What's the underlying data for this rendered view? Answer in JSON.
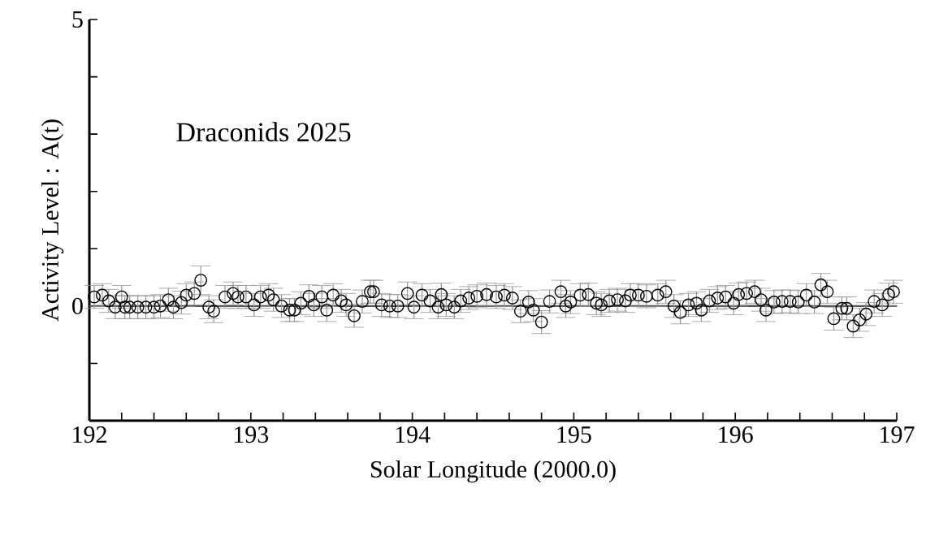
{
  "chart_data": {
    "type": "scatter",
    "xlabel": "Solar Longitude (2000.0)",
    "ylabel": "Activity Level : A(t)",
    "annotations": [
      "Draconids 2025"
    ],
    "xlim": [
      192,
      197
    ],
    "xticks": [
      192,
      {
        "value": 192.2,
        "label": null
      },
      {
        "value": 192.4,
        "label": null
      },
      {
        "value": 192.6,
        "label": null
      },
      {
        "value": 192.8,
        "label": null
      },
      193,
      {
        "value": 193.2,
        "label": null
      },
      {
        "value": 193.4,
        "label": null
      },
      {
        "value": 193.6,
        "label": null
      },
      {
        "value": 193.8,
        "label": null
      },
      194,
      {
        "value": 194.2,
        "label": null
      },
      {
        "value": 194.4,
        "label": null
      },
      {
        "value": 194.6,
        "label": null
      },
      {
        "value": 194.8,
        "label": null
      },
      195,
      {
        "value": 195.2,
        "label": null
      },
      {
        "value": 195.4,
        "label": null
      },
      {
        "value": 195.6,
        "label": null
      },
      {
        "value": 195.8,
        "label": null
      },
      196,
      {
        "value": 196.2,
        "label": null
      },
      {
        "value": 196.4,
        "label": null
      },
      {
        "value": 196.6,
        "label": null
      },
      {
        "value": 196.8,
        "label": null
      },
      197
    ],
    "ylim": [
      -2,
      5
    ],
    "yticks": [
      {
        "value": -1,
        "label": null
      },
      0,
      {
        "value": 1,
        "label": null
      },
      {
        "value": 2,
        "label": null
      },
      {
        "value": 3,
        "label": null
      },
      {
        "value": 4,
        "label": null
      },
      5
    ],
    "marker": "circle",
    "ref_lines": [
      {
        "axis": "y",
        "value": 0,
        "color": "#555555"
      }
    ],
    "series": [
      {
        "color": "#000000",
        "x": [
          192.03,
          192.08,
          192.12,
          192.16,
          192.2,
          192.22,
          192.25,
          192.3,
          192.35,
          192.4,
          192.44,
          192.49,
          192.52,
          192.57,
          192.6,
          192.65,
          192.69,
          192.74,
          192.77,
          192.84,
          192.89,
          192.92,
          192.97,
          193.02,
          193.06,
          193.11,
          193.14,
          193.19,
          193.24,
          193.27,
          193.31,
          193.36,
          193.39,
          193.44,
          193.47,
          193.51,
          193.56,
          193.59,
          193.64,
          193.69,
          193.74,
          193.76,
          193.81,
          193.86,
          193.91,
          193.97,
          194.01,
          194.06,
          194.11,
          194.16,
          194.18,
          194.21,
          194.26,
          194.3,
          194.35,
          194.4,
          194.46,
          194.52,
          194.57,
          194.62,
          194.67,
          194.72,
          194.75,
          194.8,
          194.85,
          194.92,
          194.95,
          194.98,
          195.04,
          195.09,
          195.14,
          195.17,
          195.22,
          195.27,
          195.32,
          195.35,
          195.4,
          195.45,
          195.52,
          195.57,
          195.62,
          195.66,
          195.71,
          195.76,
          195.79,
          195.84,
          195.89,
          195.94,
          195.99,
          196.02,
          196.07,
          196.12,
          196.16,
          196.19,
          196.24,
          196.29,
          196.34,
          196.39,
          196.44,
          196.49,
          196.53,
          196.57,
          196.61,
          196.66,
          196.69,
          196.73,
          196.77,
          196.81,
          196.86,
          196.91,
          196.95,
          196.98
        ],
        "values": [
          0.16,
          0.19,
          0.09,
          -0.02,
          0.16,
          -0.02,
          -0.02,
          -0.02,
          -0.02,
          -0.02,
          0,
          0.11,
          -0.02,
          0.06,
          0.19,
          0.22,
          0.45,
          -0.02,
          -0.09,
          0.16,
          0.22,
          0.16,
          0.16,
          0.02,
          0.16,
          0.19,
          0.11,
          0,
          -0.07,
          -0.07,
          0.05,
          0.17,
          0.02,
          0.16,
          -0.07,
          0.19,
          0.09,
          0.02,
          -0.17,
          0.08,
          0.25,
          0.25,
          0.02,
          0,
          0,
          0.22,
          -0.02,
          0.19,
          0.09,
          -0.02,
          0.2,
          0.02,
          -0.02,
          0.09,
          0.14,
          0.17,
          0.2,
          0.16,
          0.19,
          0.14,
          -0.09,
          0.07,
          -0.07,
          -0.28,
          0.08,
          0.25,
          0,
          0.07,
          0.19,
          0.2,
          0.05,
          0.02,
          0.09,
          0.11,
          0.09,
          0.19,
          0.19,
          0.17,
          0.19,
          0.25,
          0,
          -0.11,
          0.02,
          0.05,
          -0.07,
          0.09,
          0.14,
          0.16,
          0.05,
          0.2,
          0.22,
          0.25,
          0.11,
          -0.07,
          0.07,
          0.08,
          0.08,
          0.07,
          0.19,
          0.07,
          0.37,
          0.25,
          -0.22,
          -0.04,
          -0.04,
          -0.35,
          -0.24,
          -0.14,
          0.08,
          0.02,
          0.2,
          0.25
        ],
        "errors": [
          0.2,
          0.2,
          0.2,
          0.2,
          0.2,
          0.2,
          0.2,
          0.2,
          0.2,
          0.2,
          0.2,
          0.2,
          0.2,
          0.2,
          0.2,
          0.2,
          0.25,
          0.2,
          0.2,
          0.2,
          0.2,
          0.2,
          0.2,
          0.2,
          0.2,
          0.2,
          0.2,
          0.2,
          0.2,
          0.2,
          0.2,
          0.2,
          0.2,
          0.2,
          0.2,
          0.2,
          0.2,
          0.2,
          0.2,
          0.2,
          0.2,
          0.2,
          0.2,
          0.2,
          0.2,
          0.2,
          0.2,
          0.2,
          0.2,
          0.2,
          0.2,
          0.2,
          0.2,
          0.2,
          0.2,
          0.2,
          0.2,
          0.2,
          0.2,
          0.2,
          0.2,
          0.2,
          0.2,
          0.2,
          0.2,
          0.2,
          0.2,
          0.2,
          0.2,
          0.2,
          0.2,
          0.2,
          0.2,
          0.2,
          0.2,
          0.2,
          0.2,
          0.2,
          0.2,
          0.2,
          0.2,
          0.2,
          0.2,
          0.2,
          0.2,
          0.2,
          0.2,
          0.2,
          0.2,
          0.2,
          0.2,
          0.2,
          0.2,
          0.2,
          0.2,
          0.2,
          0.2,
          0.2,
          0.2,
          0.2,
          0.2,
          0.2,
          0.2,
          0.2,
          0.2,
          0.2,
          0.2,
          0.2,
          0.2,
          0.2,
          0.2,
          0.2
        ]
      }
    ]
  }
}
